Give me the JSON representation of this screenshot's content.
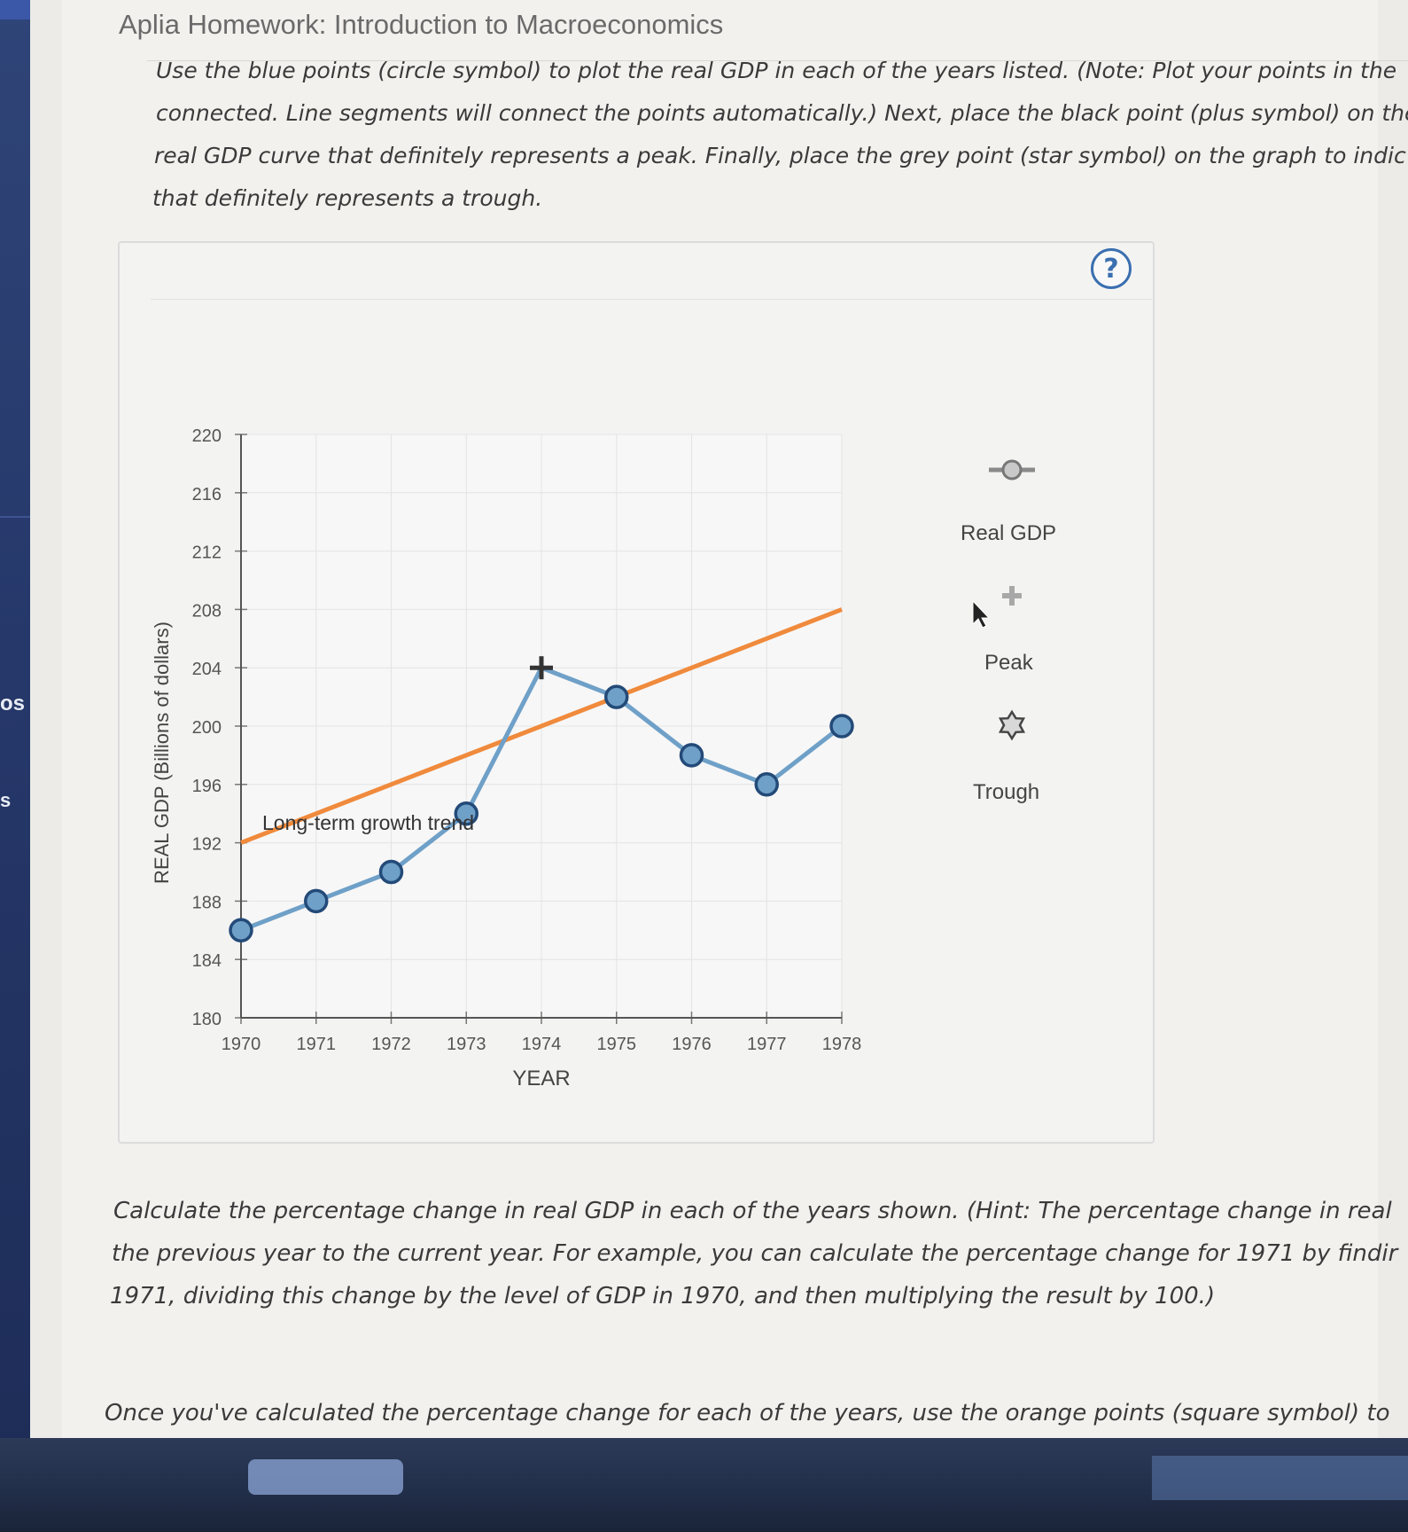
{
  "page": {
    "title": "Aplia Homework: Introduction to Macroeconomics",
    "sidebar_fragment_1": "os",
    "sidebar_fragment_2": "s"
  },
  "instructions": {
    "line1": "Use the blue points (circle symbol) to plot the real GDP in each of the years listed. (Note: Plot your points in the",
    "line2": "connected. Line segments will connect the points automatically.) Next, place the black point (plus symbol) on the",
    "line3": "real GDP curve that definitely represents a peak. Finally, place the grey point (star symbol) on the graph to indic",
    "line4": "that definitely represents a trough."
  },
  "help_icon": "?",
  "legend": {
    "real_gdp": "Real GDP",
    "peak": "Peak",
    "trough": "Trough",
    "real_gdp_icon": "circle-point-icon",
    "peak_icon": "plus-point-icon",
    "trough_icon": "star-point-icon",
    "colors": {
      "real_gdp": "#6fa0c8",
      "peak": "#a8a8a8",
      "trough": "#444444"
    }
  },
  "chart_data": {
    "type": "line",
    "title": "",
    "xlabel": "YEAR",
    "ylabel": "REAL GDP (Billions of dollars)",
    "ylim": [
      180,
      220
    ],
    "yticks": [
      180,
      184,
      188,
      192,
      196,
      200,
      204,
      208,
      212,
      216,
      220
    ],
    "categories": [
      "1970",
      "1971",
      "1972",
      "1973",
      "1974",
      "1975",
      "1976",
      "1977",
      "1978"
    ],
    "series": [
      {
        "name": "Real GDP",
        "color": "#6fa0c8",
        "values": [
          186,
          188,
          190,
          194,
          204,
          202,
          198,
          196,
          200
        ]
      },
      {
        "name": "",
        "color": "#f08a3c",
        "values_at": {
          "1970": 192,
          "1978": 208
        }
      }
    ],
    "annotations": [
      {
        "text": "Long-term growth trend"
      }
    ],
    "peak": {
      "year": "1974",
      "value": 204
    },
    "grid": true
  },
  "bottom_text": {
    "line1": "Calculate the percentage change in real GDP in each of the years shown. (Hint: The percentage change in real",
    "line2": "the previous year to the current year. For example, you can calculate the percentage change for 1971 by findir",
    "line3": "1971, dividing this change by the level of GDP in 1970, and then multiplying the result by 100.)",
    "line4": "Once you've calculated the percentage change for each of the years, use the orange points (square symbol) to"
  }
}
